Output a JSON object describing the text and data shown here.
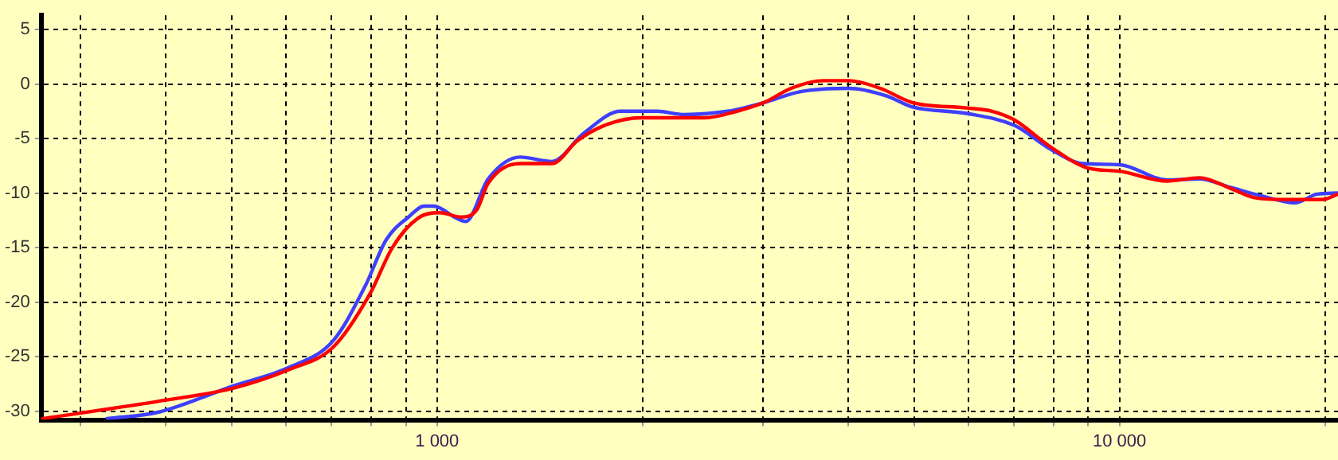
{
  "chart_data": {
    "type": "line",
    "log": "x",
    "grid": true,
    "legend": false,
    "marker": "none",
    "line_style": "solid",
    "xlim": [
      263,
      20900
    ],
    "ylim": [
      -30.8,
      6.3
    ],
    "xticks": [
      {
        "value": 300,
        "label": null
      },
      {
        "value": 400,
        "label": null
      },
      {
        "value": 500,
        "label": null
      },
      {
        "value": 600,
        "label": null
      },
      {
        "value": 700,
        "label": null
      },
      {
        "value": 800,
        "label": null
      },
      {
        "value": 900,
        "label": null
      },
      {
        "value": 1000,
        "label": "1 000"
      },
      {
        "value": 2000,
        "label": null
      },
      {
        "value": 3000,
        "label": null
      },
      {
        "value": 4000,
        "label": null
      },
      {
        "value": 5000,
        "label": null
      },
      {
        "value": 6000,
        "label": null
      },
      {
        "value": 7000,
        "label": null
      },
      {
        "value": 8000,
        "label": null
      },
      {
        "value": 9000,
        "label": null
      },
      {
        "value": 10000,
        "label": "10 000"
      },
      {
        "value": 20000,
        "label": null
      }
    ],
    "yticks": [
      5,
      0,
      -5,
      -10,
      -15,
      -20,
      -25,
      -30
    ],
    "series": [
      {
        "color": "#ff0000",
        "x": [
          263,
          390,
          502,
          606,
          705,
          798,
          860,
          938,
          1011,
          1084,
          1144,
          1188,
          1323,
          1473,
          1606,
          1759,
          1991,
          2469,
          2750,
          3013,
          3302,
          3677,
          4008,
          4461,
          4970,
          5968,
          6504,
          7013,
          7936,
          8982,
          10000,
          11752,
          13089,
          14577,
          15720,
          17500,
          19810,
          20900
        ],
        "values": [
          -30.7,
          -29.1,
          -27.9,
          -26.2,
          -24.1,
          -19.2,
          -15.0,
          -12.3,
          -11.8,
          -12.2,
          -11.5,
          -9.1,
          -7.3,
          -7.3,
          -5.2,
          -3.8,
          -3.1,
          -3.1,
          -2.5,
          -1.7,
          -0.4,
          0.3,
          0.3,
          -0.4,
          -1.7,
          -2.2,
          -2.5,
          -3.3,
          -5.8,
          -7.7,
          -8.0,
          -8.9,
          -8.6,
          -9.6,
          -10.4,
          -10.6,
          -10.6,
          -10.1
        ]
      },
      {
        "color": "#3f3fff",
        "x": [
          327,
          390,
          502,
          606,
          705,
          785,
          842,
          908,
          958,
          989,
          1067,
          1102,
          1188,
          1323,
          1473,
          1641,
          1857,
          2101,
          2302,
          2662,
          3013,
          3409,
          4008,
          4559,
          4970,
          5968,
          7013,
          7936,
          8837,
          10000,
          11752,
          13089,
          14577,
          16230,
          18070,
          19490,
          20900
        ],
        "values": [
          -30.7,
          -30.1,
          -27.7,
          -26.0,
          -23.5,
          -18.5,
          -14.3,
          -12.2,
          -11.2,
          -11.2,
          -12.3,
          -12.6,
          -8.7,
          -6.7,
          -7.1,
          -4.5,
          -2.5,
          -2.5,
          -2.8,
          -2.5,
          -1.7,
          -0.7,
          -0.4,
          -1.1,
          -2.1,
          -2.7,
          -3.8,
          -6.0,
          -7.3,
          -7.4,
          -8.8,
          -8.7,
          -9.5,
          -10.3,
          -10.9,
          -10.1,
          -10.0
        ]
      }
    ]
  }
}
